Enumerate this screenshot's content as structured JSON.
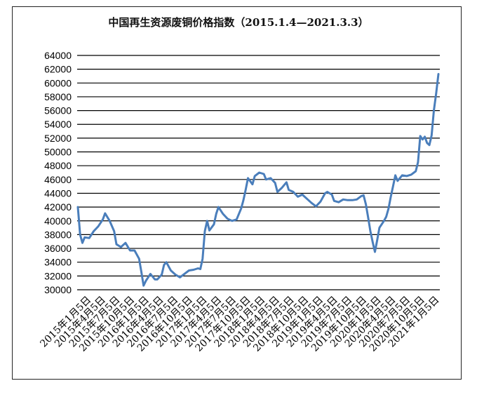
{
  "chart_data": {
    "type": "line",
    "title": "中国再生资源废铜价格指数（2015.1.4—2021.3.3）",
    "xlabel": "",
    "ylabel": "",
    "ylim": [
      30000,
      64000
    ],
    "yticks": [
      30000,
      32000,
      34000,
      36000,
      38000,
      40000,
      42000,
      44000,
      46000,
      48000,
      50000,
      52000,
      54000,
      56000,
      58000,
      60000,
      62000,
      64000
    ],
    "xtick_labels": [
      "2015年1月5日",
      "2015年4月5日",
      "2015年7月5日",
      "2015年10月5日",
      "2016年1月5日",
      "2016年4月5日",
      "2016年7月5日",
      "2016年10月5日",
      "2017年1月5日",
      "2017年4月5日",
      "2017年7月5日",
      "2017年10月5日",
      "2018年1月5日",
      "2018年4月5日",
      "2018年7月5日",
      "2018年10月5日",
      "2019年1月5日",
      "2019年4月5日",
      "2019年7月5日",
      "2019年10月5日",
      "2020年1月5日",
      "2020年4月5日",
      "2020年7月5日",
      "2020年10月5日",
      "2021年1月5日"
    ],
    "grid": true,
    "legend": "none",
    "line_color": "#4a7ebb",
    "series": [
      {
        "values": [
          [
            0,
            42000
          ],
          [
            1,
            38000
          ],
          [
            2,
            36800
          ],
          [
            3,
            37600
          ],
          [
            5,
            37500
          ],
          [
            7,
            38500
          ],
          [
            9,
            39200
          ],
          [
            11,
            40200
          ],
          [
            12,
            41100
          ],
          [
            14,
            40000
          ],
          [
            16,
            38500
          ],
          [
            17,
            36600
          ],
          [
            19,
            36200
          ],
          [
            21,
            36800
          ],
          [
            23,
            35700
          ],
          [
            25,
            35700
          ],
          [
            27,
            34500
          ],
          [
            28,
            32600
          ],
          [
            29,
            30600
          ],
          [
            30,
            31300
          ],
          [
            32,
            32300
          ],
          [
            34,
            31500
          ],
          [
            35,
            31500
          ],
          [
            37,
            32200
          ],
          [
            38,
            33600
          ],
          [
            39,
            34000
          ],
          [
            41,
            32800
          ],
          [
            43,
            32200
          ],
          [
            45,
            31800
          ],
          [
            47,
            32300
          ],
          [
            49,
            32800
          ],
          [
            51,
            32900
          ],
          [
            53,
            33100
          ],
          [
            54,
            33000
          ],
          [
            55,
            34500
          ],
          [
            56,
            38500
          ],
          [
            57,
            40000
          ],
          [
            58,
            38600
          ],
          [
            60,
            39500
          ],
          [
            61,
            41000
          ],
          [
            62,
            42000
          ],
          [
            64,
            41000
          ],
          [
            66,
            40300
          ],
          [
            68,
            40000
          ],
          [
            70,
            40200
          ],
          [
            72,
            41800
          ],
          [
            73,
            43000
          ],
          [
            74,
            44500
          ],
          [
            75,
            46200
          ],
          [
            77,
            45300
          ],
          [
            78,
            46500
          ],
          [
            80,
            47000
          ],
          [
            82,
            46800
          ],
          [
            83,
            46000
          ],
          [
            85,
            46200
          ],
          [
            87,
            45500
          ],
          [
            88,
            44200
          ],
          [
            90,
            44800
          ],
          [
            92,
            45600
          ],
          [
            93,
            44500
          ],
          [
            95,
            44200
          ],
          [
            97,
            43500
          ],
          [
            99,
            43800
          ],
          [
            101,
            43200
          ],
          [
            103,
            42600
          ],
          [
            105,
            42100
          ],
          [
            107,
            42800
          ],
          [
            109,
            44000
          ],
          [
            110,
            44200
          ],
          [
            112,
            43800
          ],
          [
            113,
            42900
          ],
          [
            115,
            42700
          ],
          [
            117,
            43100
          ],
          [
            119,
            43000
          ],
          [
            121,
            43000
          ],
          [
            123,
            43100
          ],
          [
            125,
            43600
          ],
          [
            126,
            43700
          ],
          [
            127,
            42400
          ],
          [
            128,
            40500
          ],
          [
            129,
            38500
          ],
          [
            130,
            36900
          ],
          [
            131,
            35500
          ],
          [
            132,
            37200
          ],
          [
            133,
            39000
          ],
          [
            135,
            40000
          ],
          [
            136,
            40600
          ],
          [
            137,
            41800
          ],
          [
            138,
            43500
          ],
          [
            139,
            45000
          ],
          [
            140,
            46600
          ],
          [
            141,
            45800
          ],
          [
            143,
            46600
          ],
          [
            145,
            46500
          ],
          [
            147,
            46700
          ],
          [
            149,
            47200
          ],
          [
            150,
            48500
          ],
          [
            151,
            52300
          ],
          [
            152,
            51800
          ],
          [
            153,
            52200
          ],
          [
            154,
            51300
          ],
          [
            155,
            51000
          ],
          [
            156,
            52400
          ],
          [
            157,
            56000
          ],
          [
            158,
            58500
          ],
          [
            159,
            61300
          ]
        ]
      }
    ]
  }
}
